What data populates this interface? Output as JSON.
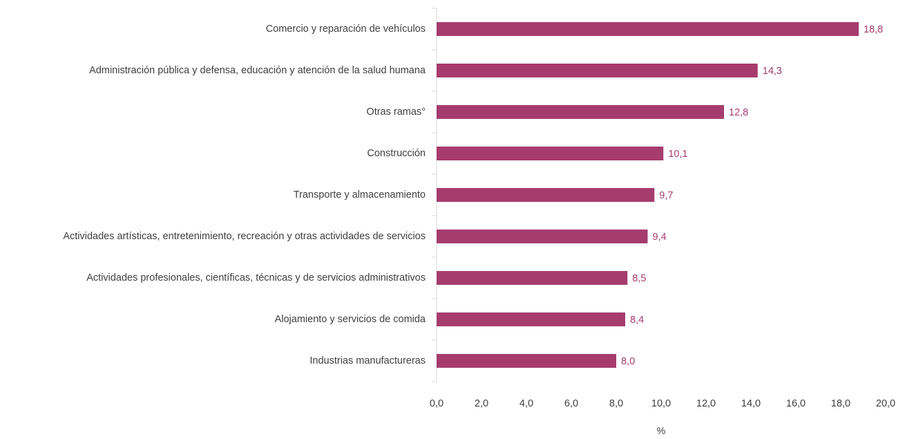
{
  "chart_data": {
    "type": "barh",
    "categories": [
      "Comercio y reparación de vehículos",
      "Administración pública y defensa, educación y atención de la salud humana",
      "Otras ramas°",
      "Construcción",
      "Transporte y almacenamiento",
      "Actividades artísticas, entretenimiento, recreación y otras actividades de servicios",
      "Actividades profesionales, científicas, técnicas y de servicios administrativos",
      "Alojamiento y servicios de comida",
      "Industrias manufactureras"
    ],
    "values": [
      18.8,
      14.3,
      12.8,
      10.1,
      9.7,
      9.4,
      8.5,
      8.4,
      8.0
    ],
    "value_labels": [
      "18,8",
      "14,3",
      "12,8",
      "10,1",
      "9,7",
      "9,4",
      "8,5",
      "8,4",
      "8,0"
    ],
    "color": "#a63c6e",
    "xlim": [
      0,
      20
    ],
    "xticks": [
      {
        "value": 0,
        "label": "0,0"
      },
      {
        "value": 2,
        "label": "2,0"
      },
      {
        "value": 4,
        "label": "4,0"
      },
      {
        "value": 6,
        "label": "6,0"
      },
      {
        "value": 8,
        "label": "8,0"
      },
      {
        "value": 10,
        "label": "10,0"
      },
      {
        "value": 12,
        "label": "12,0"
      },
      {
        "value": 14,
        "label": "14,0"
      },
      {
        "value": 16,
        "label": "16,0"
      },
      {
        "value": 18,
        "label": "18,0"
      },
      {
        "value": 20,
        "label": "20,0"
      }
    ],
    "xlabel": "%"
  }
}
